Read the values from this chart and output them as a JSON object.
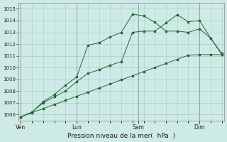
{
  "background_color": "#ceeae6",
  "grid_color": "#a8cec9",
  "line_color": "#1e6b2e",
  "vline_color": "#7a9a97",
  "xlabel": "Pression niveau de la mer(  hPa  )",
  "ylim": [
    1005.5,
    1015.5
  ],
  "yticks": [
    1006,
    1007,
    1008,
    1009,
    1010,
    1011,
    1012,
    1013,
    1014,
    1015
  ],
  "n_points": 19,
  "xlim": [
    -0.2,
    18.2
  ],
  "xtick_positions": [
    0.0,
    5.0,
    10.5,
    16.0
  ],
  "xtick_labels": [
    "Ven",
    "Lun",
    "Sam",
    "Dim"
  ],
  "vlines": [
    0.0,
    5.0,
    10.5,
    16.0
  ],
  "series_slow_x": [
    0,
    1,
    2,
    3,
    4,
    5,
    6,
    7,
    8,
    9,
    10,
    11,
    12,
    13,
    14,
    15,
    16,
    17,
    18
  ],
  "series_slow_y": [
    1005.8,
    1006.15,
    1006.5,
    1006.85,
    1007.2,
    1007.55,
    1007.9,
    1008.25,
    1008.6,
    1008.95,
    1009.3,
    1009.65,
    1010.0,
    1010.35,
    1010.7,
    1011.05,
    1011.1,
    1011.1,
    1011.1
  ],
  "series_mid_x": [
    0,
    1,
    2,
    3,
    4,
    5,
    6,
    7,
    8,
    9,
    10,
    11,
    12,
    13,
    14,
    15,
    16,
    17,
    18
  ],
  "series_mid_y": [
    1005.8,
    1006.2,
    1007.0,
    1007.5,
    1008.0,
    1008.8,
    1009.5,
    1009.8,
    1010.2,
    1010.5,
    1013.0,
    1013.1,
    1013.1,
    1013.8,
    1014.5,
    1013.9,
    1014.0,
    1012.5,
    1011.1
  ],
  "series_top_x": [
    0,
    1,
    2,
    3,
    4,
    5,
    6,
    7,
    8,
    9,
    10,
    11,
    12,
    13,
    14,
    15,
    16,
    17,
    18
  ],
  "series_top_y": [
    1005.8,
    1006.2,
    1007.1,
    1007.7,
    1008.5,
    1009.2,
    1011.9,
    1012.1,
    1012.6,
    1013.0,
    1014.55,
    1014.4,
    1013.85,
    1013.1,
    1013.1,
    1013.0,
    1013.3,
    1012.5,
    1011.2
  ]
}
